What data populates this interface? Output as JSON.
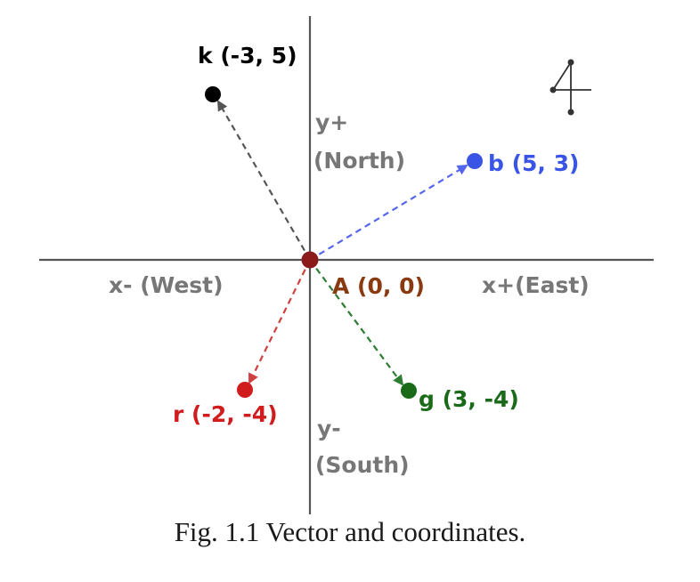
{
  "caption": "Fig. 1.1 Vector and coordinates.",
  "axes": {
    "y_plus": "y+",
    "north": "(North)",
    "y_minus": "y-",
    "south": "(South)",
    "x_minus": "x- (West)",
    "x_plus": "x+(East)",
    "color": "#777777"
  },
  "origin": {
    "label": "A (0, 0)",
    "x": 0,
    "y": 0,
    "color": "#8b1a1a",
    "label_color": "#8a3a10"
  },
  "vectors": [
    {
      "id": "k",
      "label": "k (-3, 5)",
      "x": -3,
      "y": 5,
      "color": "#000000",
      "line_color": "#555555"
    },
    {
      "id": "b",
      "label": "b (5, 3)",
      "x": 5,
      "y": 3,
      "color": "#3a55e6",
      "line_color": "#5566ee"
    },
    {
      "id": "r",
      "label": "r (-2, -4)",
      "x": -2,
      "y": -4,
      "color": "#d01c1c",
      "line_color": "#d04040"
    },
    {
      "id": "g",
      "label": "g (3, -4)",
      "x": 3,
      "y": -4,
      "color": "#1a6a1a",
      "line_color": "#2e7d32"
    }
  ]
}
